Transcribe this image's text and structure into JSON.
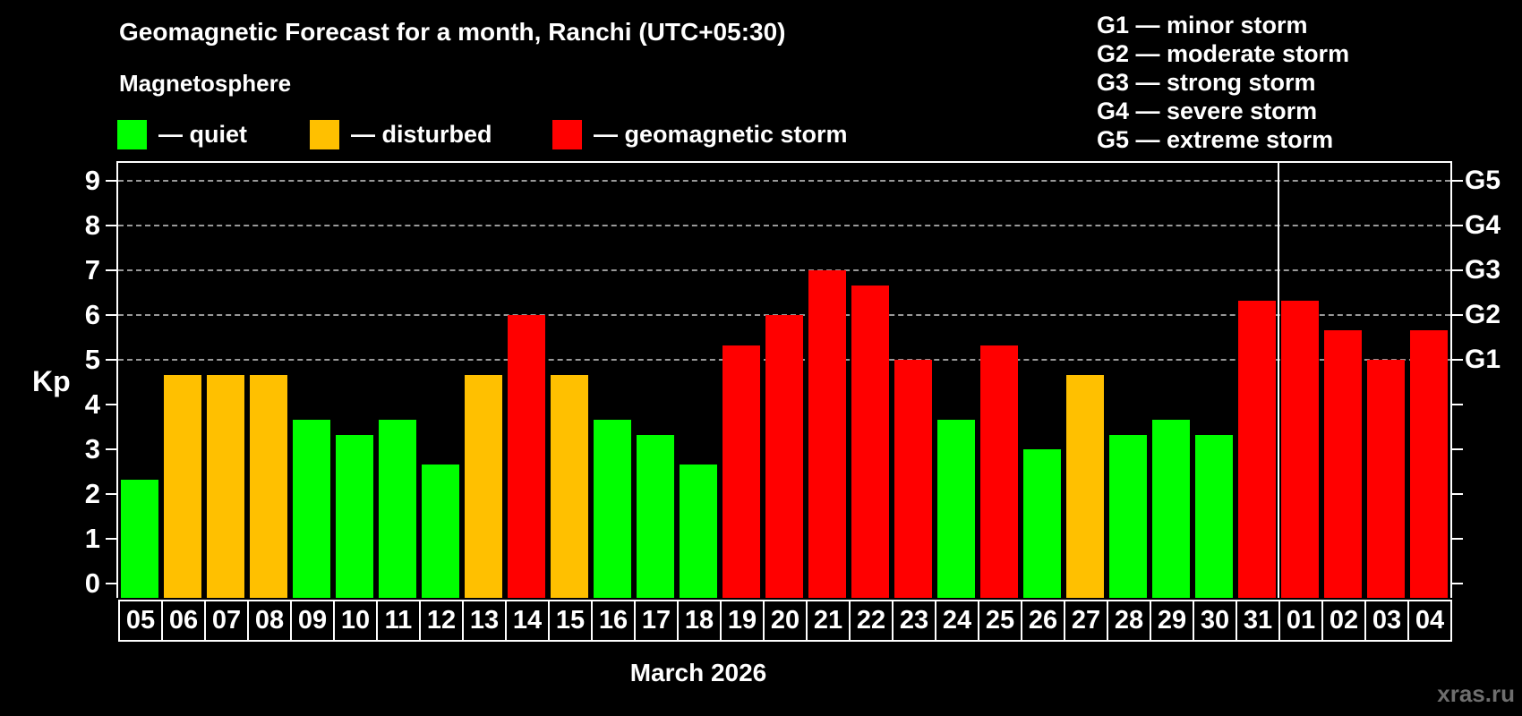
{
  "header": {
    "title": "Geomagnetic Forecast for a month, Ranchi (UTC+05:30)",
    "subtitle": "Magnetosphere"
  },
  "legend": {
    "items": [
      {
        "status": "quiet",
        "label": "— quiet"
      },
      {
        "status": "disturbed",
        "label": "— disturbed"
      },
      {
        "status": "storm",
        "label": "— geomagnetic storm"
      }
    ]
  },
  "g_legend": {
    "lines": [
      "G1 — minor storm",
      "G2 — moderate storm",
      "G3 — strong storm",
      "G4 — severe storm",
      "G5 — extreme storm"
    ]
  },
  "footer": {
    "watermark": "xras.ru"
  },
  "colors": {
    "quiet": "#00ff00",
    "disturbed": "#ffc000",
    "storm": "#ff0000",
    "axis": "#ffffff",
    "grid": "#999999",
    "background": "#000000",
    "watermark": "#6e6e6e"
  },
  "chart_data": {
    "type": "bar",
    "title": "Geomagnetic Forecast for a month, Ranchi (UTC+05:30)",
    "xlabel": "March 2026",
    "ylabel": "Kp",
    "ylim": [
      0,
      9.4
    ],
    "y_ticks": [
      0,
      1,
      2,
      3,
      4,
      5,
      6,
      7,
      8,
      9
    ],
    "grid": "dashed horizontal lines at Kp 5-9 (G1-G5)",
    "legend_position": "top-left",
    "g_levels": [
      {
        "kp": 5,
        "label": "G1"
      },
      {
        "kp": 6,
        "label": "G2"
      },
      {
        "kp": 7,
        "label": "G3"
      },
      {
        "kp": 8,
        "label": "G4"
      },
      {
        "kp": 9,
        "label": "G5"
      }
    ],
    "month_separator_after_index": 26,
    "bars": [
      {
        "day": "05",
        "kp": 2.33,
        "status": "quiet"
      },
      {
        "day": "06",
        "kp": 4.67,
        "status": "disturbed"
      },
      {
        "day": "07",
        "kp": 4.67,
        "status": "disturbed"
      },
      {
        "day": "08",
        "kp": 4.67,
        "status": "disturbed"
      },
      {
        "day": "09",
        "kp": 3.67,
        "status": "quiet"
      },
      {
        "day": "10",
        "kp": 3.33,
        "status": "quiet"
      },
      {
        "day": "11",
        "kp": 3.67,
        "status": "quiet"
      },
      {
        "day": "12",
        "kp": 2.67,
        "status": "quiet"
      },
      {
        "day": "13",
        "kp": 4.67,
        "status": "disturbed"
      },
      {
        "day": "14",
        "kp": 6.0,
        "status": "storm"
      },
      {
        "day": "15",
        "kp": 4.67,
        "status": "disturbed"
      },
      {
        "day": "16",
        "kp": 3.67,
        "status": "quiet"
      },
      {
        "day": "17",
        "kp": 3.33,
        "status": "quiet"
      },
      {
        "day": "18",
        "kp": 2.67,
        "status": "quiet"
      },
      {
        "day": "19",
        "kp": 5.33,
        "status": "storm"
      },
      {
        "day": "20",
        "kp": 6.0,
        "status": "storm"
      },
      {
        "day": "21",
        "kp": 7.0,
        "status": "storm"
      },
      {
        "day": "22",
        "kp": 6.67,
        "status": "storm"
      },
      {
        "day": "23",
        "kp": 5.0,
        "status": "storm"
      },
      {
        "day": "24",
        "kp": 3.67,
        "status": "quiet"
      },
      {
        "day": "25",
        "kp": 5.33,
        "status": "storm"
      },
      {
        "day": "26",
        "kp": 3.0,
        "status": "quiet"
      },
      {
        "day": "27",
        "kp": 4.67,
        "status": "disturbed"
      },
      {
        "day": "28",
        "kp": 3.33,
        "status": "quiet"
      },
      {
        "day": "29",
        "kp": 3.67,
        "status": "quiet"
      },
      {
        "day": "30",
        "kp": 3.33,
        "status": "quiet"
      },
      {
        "day": "31",
        "kp": 6.33,
        "status": "storm"
      },
      {
        "day": "01",
        "kp": 6.33,
        "status": "storm"
      },
      {
        "day": "02",
        "kp": 5.67,
        "status": "storm"
      },
      {
        "day": "03",
        "kp": 5.0,
        "status": "storm"
      },
      {
        "day": "04",
        "kp": 5.67,
        "status": "storm"
      }
    ]
  }
}
